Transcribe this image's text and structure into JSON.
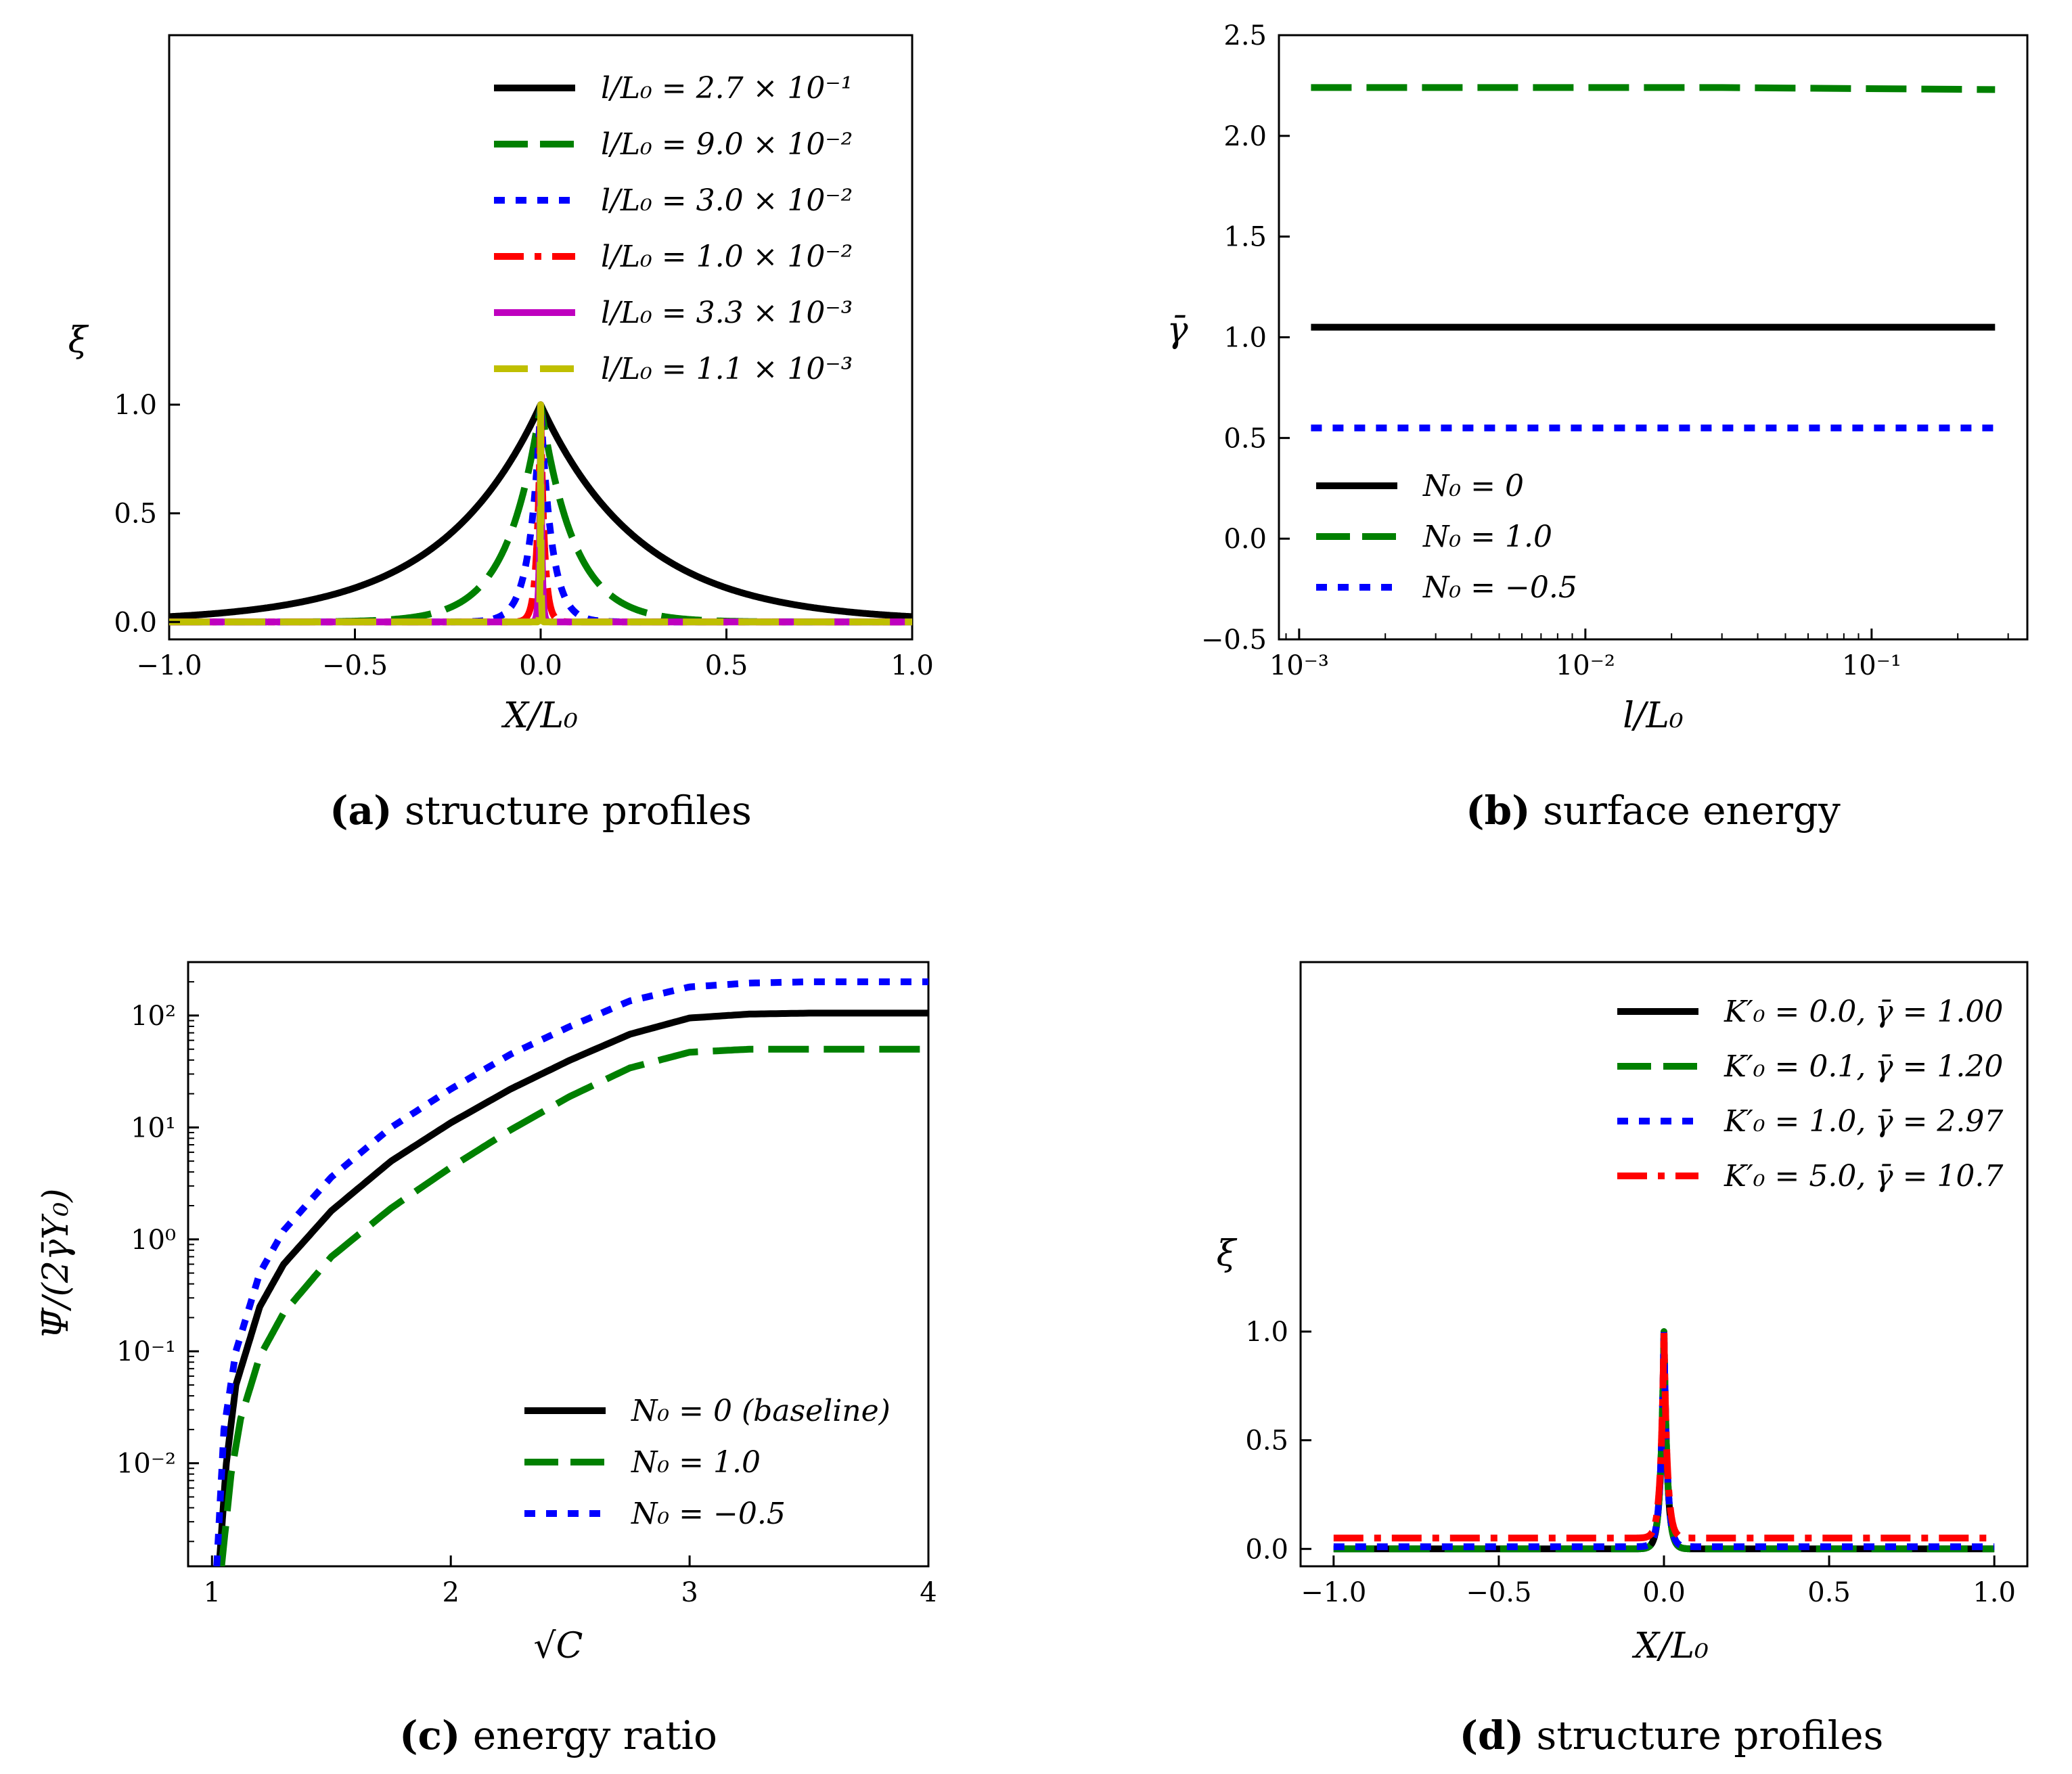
{
  "chart_data": [
    {
      "id": "a",
      "type": "line",
      "caption_label": "(a)",
      "caption_text": "structure profiles",
      "xlabel": "X/L₀",
      "ylabel": "ξ",
      "xlim": [
        -1.0,
        1.0
      ],
      "ylim": [
        -0.08,
        2.7
      ],
      "xscale": "linear",
      "yscale": "linear",
      "xticks": [
        -1.0,
        -0.5,
        0.0,
        0.5,
        1.0
      ],
      "xtick_labels": [
        "−1.0",
        "−0.5",
        "0.0",
        "0.5",
        "1.0"
      ],
      "yticks": [
        0.0,
        0.5,
        1.0
      ],
      "ytick_labels": [
        "0.0",
        "0.5",
        "1.0"
      ],
      "legend_position": "top-right",
      "series": [
        {
          "name": "l/L₀ = 2.7 × 10⁻¹",
          "color": "#000000",
          "dash": "solid",
          "ell": 0.27,
          "width": 1.0
        },
        {
          "name": "l/L₀ = 9.0 × 10⁻²",
          "color": "#008000",
          "dash": "dashed",
          "ell": 0.09,
          "width": 2.0
        },
        {
          "name": "l/L₀ = 3.0 × 10⁻²",
          "color": "#0000ff",
          "dash": "dotted",
          "ell": 0.03,
          "width": 4.0
        },
        {
          "name": "l/L₀ = 1.0 × 10⁻²",
          "color": "#ff0000",
          "dash": "dashdot",
          "ell": 0.01,
          "width": 10.0
        },
        {
          "name": "l/L₀ = 3.3 × 10⁻³",
          "color": "#bf00bf",
          "dash": "solid",
          "ell": 0.0033,
          "width": 25.0
        },
        {
          "name": "l/L₀ = 1.1 × 10⁻³",
          "color": "#bfbf00",
          "dash": "dashed",
          "ell": 0.0011,
          "width": 80.0
        }
      ]
    },
    {
      "id": "b",
      "type": "line",
      "caption_label": "(b)",
      "caption_text": "surface energy",
      "xlabel": "l/L₀",
      "ylabel": "γ̄",
      "xlim": [
        0.00085,
        0.35
      ],
      "ylim": [
        -0.5,
        2.5
      ],
      "xscale": "log",
      "yscale": "linear",
      "xticks": [
        0.001,
        0.01,
        0.1
      ],
      "xtick_labels": [
        "10⁻³",
        "10⁻²",
        "10⁻¹"
      ],
      "yticks": [
        -0.5,
        0.0,
        0.5,
        1.0,
        1.5,
        2.0,
        2.5
      ],
      "ytick_labels": [
        "−0.5",
        "0.0",
        "0.5",
        "1.0",
        "1.5",
        "2.0",
        "2.5"
      ],
      "legend_position": "lower-left",
      "series": [
        {
          "name": "N₀ = 0",
          "color": "#000000",
          "dash": "solid",
          "x": [
            0.0011,
            0.0033,
            0.01,
            0.03,
            0.09,
            0.27
          ],
          "y": [
            1.05,
            1.05,
            1.05,
            1.05,
            1.05,
            1.05
          ]
        },
        {
          "name": "N₀ = 1.0",
          "color": "#008000",
          "dash": "dashed",
          "x": [
            0.0011,
            0.0033,
            0.01,
            0.03,
            0.09,
            0.27
          ],
          "y": [
            2.24,
            2.24,
            2.24,
            2.24,
            2.235,
            2.23
          ]
        },
        {
          "name": "N₀ = −0.5",
          "color": "#0000ff",
          "dash": "dotted",
          "x": [
            0.0011,
            0.0033,
            0.01,
            0.03,
            0.09,
            0.27
          ],
          "y": [
            0.55,
            0.55,
            0.55,
            0.55,
            0.55,
            0.55
          ]
        }
      ]
    },
    {
      "id": "c",
      "type": "line",
      "caption_label": "(c)",
      "caption_text": "energy ratio",
      "xlabel": "√C",
      "ylabel": "Ψ̄/(2γ̄Υ₀)",
      "xlim": [
        0.9,
        4.0
      ],
      "ylim": [
        0.0012,
        300
      ],
      "xscale": "linear",
      "yscale": "log",
      "xticks": [
        1,
        2,
        3,
        4
      ],
      "xtick_labels": [
        "1",
        "2",
        "3",
        "4"
      ],
      "yticks": [
        0.01,
        0.1,
        1,
        10,
        100
      ],
      "ytick_labels": [
        "10⁻²",
        "10⁻¹",
        "10⁰",
        "10¹",
        "10²"
      ],
      "legend_position": "lower-right",
      "series": [
        {
          "name": "N₀ = 0 (baseline)",
          "color": "#000000",
          "dash": "solid",
          "x": [
            1.03,
            1.06,
            1.1,
            1.2,
            1.3,
            1.5,
            1.75,
            2.0,
            2.25,
            2.5,
            2.75,
            3.0,
            3.25,
            3.5,
            4.0
          ],
          "y": [
            0.0012,
            0.01,
            0.05,
            0.25,
            0.6,
            1.8,
            5.0,
            11,
            22,
            40,
            68,
            95,
            103,
            105,
            105
          ]
        },
        {
          "name": "N₀ = 1.0",
          "color": "#008000",
          "dash": "dashed",
          "x": [
            1.04,
            1.08,
            1.12,
            1.2,
            1.3,
            1.5,
            1.75,
            2.0,
            2.25,
            2.5,
            2.75,
            3.0,
            3.25,
            3.5,
            4.0
          ],
          "y": [
            0.0012,
            0.008,
            0.025,
            0.09,
            0.22,
            0.7,
            1.9,
            4.4,
            9.5,
            19,
            34,
            47,
            50,
            50,
            50
          ]
        },
        {
          "name": "N₀ = −0.5",
          "color": "#0000ff",
          "dash": "dotted",
          "x": [
            1.02,
            1.05,
            1.1,
            1.2,
            1.3,
            1.5,
            1.75,
            2.0,
            2.25,
            2.5,
            2.75,
            3.0,
            3.25,
            3.5,
            4.0
          ],
          "y": [
            0.0012,
            0.02,
            0.1,
            0.5,
            1.2,
            3.6,
            10,
            22,
            45,
            80,
            135,
            180,
            195,
            200,
            200
          ]
        }
      ]
    },
    {
      "id": "d",
      "type": "line",
      "caption_label": "(d)",
      "caption_text": "structure profiles",
      "xlabel": "X/L₀",
      "ylabel": "ξ",
      "xlim": [
        -1.1,
        1.1
      ],
      "ylim": [
        -0.08,
        2.7
      ],
      "xscale": "linear",
      "yscale": "linear",
      "xticks": [
        -1.0,
        -0.5,
        0.0,
        0.5,
        1.0
      ],
      "xtick_labels": [
        "−1.0",
        "−0.5",
        "0.0",
        "0.5",
        "1.0"
      ],
      "yticks": [
        0.0,
        0.5,
        1.0
      ],
      "ytick_labels": [
        "0.0",
        "0.5",
        "1.0"
      ],
      "legend_position": "top-right",
      "series": [
        {
          "name": "K′₀ = 0.0, γ̄ = 1.00",
          "color": "#000000",
          "dash": "solid",
          "ell": 0.01,
          "base": 0.0
        },
        {
          "name": "K′₀ = 0.1, γ̄ = 1.20",
          "color": "#008000",
          "dash": "dashed",
          "ell": 0.01,
          "base": 0.0
        },
        {
          "name": "K′₀ = 1.0, γ̄ = 2.97",
          "color": "#0000ff",
          "dash": "dotted",
          "ell": 0.01,
          "base": 0.01
        },
        {
          "name": "K′₀ = 5.0, γ̄ = 10.7",
          "color": "#ff0000",
          "dash": "dashdot",
          "ell": 0.01,
          "base": 0.05
        }
      ]
    }
  ]
}
